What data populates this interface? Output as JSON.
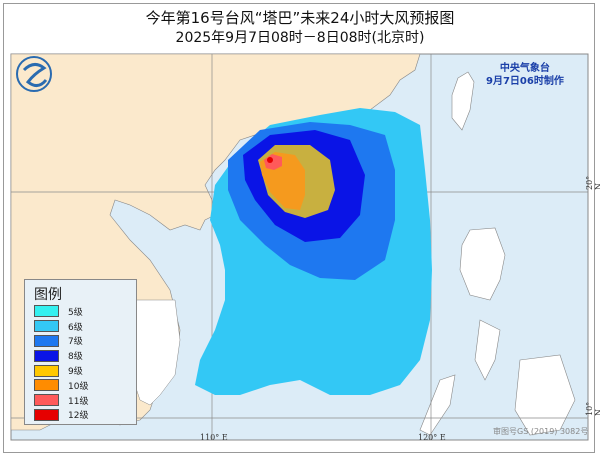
{
  "title": "今年第16号台风“塔巴”未来24小时大风预报图",
  "subtitle": "2025年9月7日08时－8日08时(北京时)",
  "agency": {
    "name": "中央气象台",
    "issued": "9月7日06时制作"
  },
  "legend": {
    "title": "图例",
    "items": [
      {
        "label": "5级",
        "color": "#33f0f0"
      },
      {
        "label": "6级",
        "color": "#33c8f5"
      },
      {
        "label": "7级",
        "color": "#1e78f0"
      },
      {
        "label": "8级",
        "color": "#0a14e6"
      },
      {
        "label": "9级",
        "color": "#ffc800"
      },
      {
        "label": "10级",
        "color": "#ff8c00"
      },
      {
        "label": "11级",
        "color": "#ff5a5a"
      },
      {
        "label": "12级",
        "color": "#e60000"
      }
    ]
  },
  "axes": {
    "lon": [
      "110° E",
      "120° E"
    ],
    "lat": [
      "20° N",
      "10° N"
    ]
  },
  "credit": "审图号GS (2019) 3082号",
  "colors": {
    "land": "#fbe9cc",
    "sea": "#dcecf7"
  }
}
